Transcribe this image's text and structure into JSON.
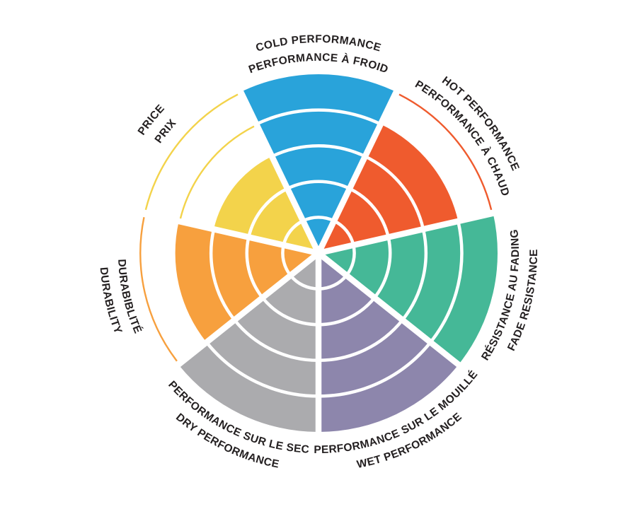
{
  "page": {
    "background_color": "#ffffff",
    "text_color": "#231F20"
  },
  "chart_data": {
    "type": "bar",
    "variant": "polar-sector-rating-wheel",
    "title": "",
    "legend_position": "none",
    "grid": "white ring dividers inside filled wedges; thin colored arcs mark unfilled ring boundaries",
    "rating_rings": 5,
    "rating_scale": [
      0,
      5
    ],
    "categories": [
      "COLD PERFORMANCE",
      "HOT PERFORMANCE",
      "FADE RESISTANCE",
      "WET PERFORMANCE",
      "DRY PERFORMANCE",
      "DURABILITY",
      "PRICE"
    ],
    "values": [
      5,
      4,
      5,
      5,
      5,
      4,
      3
    ],
    "sectors": [
      {
        "id": "cold-performance",
        "lines": [
          "COLD PERFORMANCE",
          "PERFORMANCE À FROID"
        ],
        "color": "#29A3DA",
        "rating": 5,
        "center_angle_deg": 0,
        "label_dir": "cw"
      },
      {
        "id": "hot-performance",
        "lines": [
          "HOT PERFORMANCE",
          "PERFORMANCE À CHAUD"
        ],
        "color": "#EF5B2E",
        "rating": 4,
        "center_angle_deg": 51.43,
        "label_dir": "cw"
      },
      {
        "id": "fade-resistance",
        "lines": [
          "RÉSISTANCE AU FADING",
          "FADE RESISTANCE"
        ],
        "color": "#45B897",
        "rating": 5,
        "center_angle_deg": 102.86,
        "label_dir": "ccw"
      },
      {
        "id": "wet-performance",
        "lines": [
          "PERFORMANCE SUR LE MOUILLÉ",
          "WET PERFORMANCE"
        ],
        "color": "#8D86AC",
        "rating": 5,
        "center_angle_deg": 154.29,
        "label_dir": "ccw"
      },
      {
        "id": "dry-performance",
        "lines": [
          "PERFORMANCE SUR LE SEC",
          "DRY PERFORMANCE"
        ],
        "color": "#ABABAE",
        "rating": 5,
        "center_angle_deg": 205.71,
        "label_dir": "ccw"
      },
      {
        "id": "durability",
        "lines": [
          "DURABIBLITÉ",
          "DURABILITY"
        ],
        "color": "#F7A03E",
        "rating": 4,
        "center_angle_deg": 257.14,
        "label_dir": "ccw"
      },
      {
        "id": "price",
        "lines": [
          "PRICE",
          "PRIX"
        ],
        "color": "#F3D34B",
        "rating": 3,
        "center_angle_deg": 308.57,
        "label_dir": "cw"
      }
    ]
  }
}
